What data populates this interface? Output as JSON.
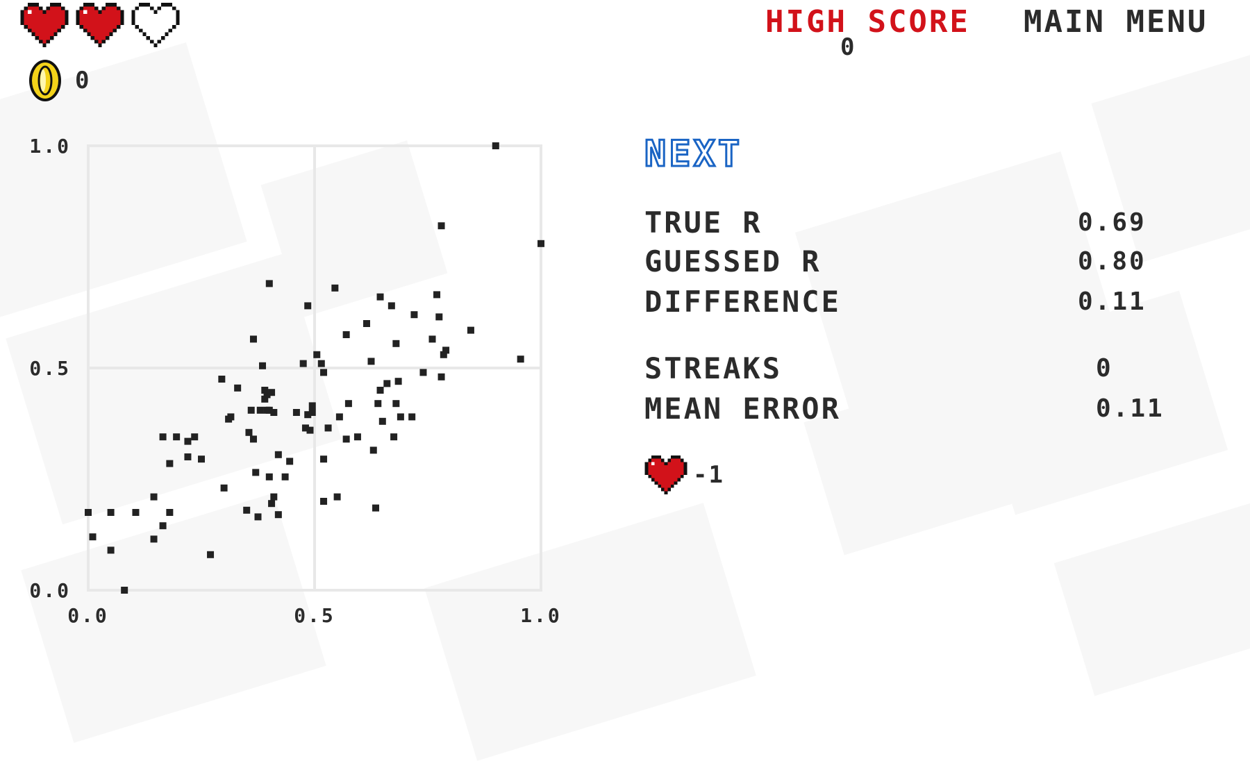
{
  "hud": {
    "lives": [
      {
        "state": "full",
        "icon": "heart-full-icon"
      },
      {
        "state": "full",
        "icon": "heart-full-icon"
      },
      {
        "state": "empty",
        "icon": "heart-empty-icon"
      }
    ],
    "coins": "0",
    "high_score_label": "HIGH SCORE",
    "high_score_value": "0",
    "main_menu_label": "MAIN MENU"
  },
  "stats": {
    "next_label": "NEXT",
    "true_r_label": "TRUE R",
    "true_r_value": "0.69",
    "guessed_r_label": "GUESSED R",
    "guessed_r_value": "0.80",
    "difference_label": "DIFFERENCE",
    "difference_value": "0.11",
    "streaks_label": "STREAKS",
    "streaks_value": "0",
    "mean_error_label": "MEAN ERROR",
    "mean_error_value": "0.11",
    "life_change": "-1"
  },
  "colors": {
    "accent_red": "#d2121a",
    "accent_blue": "#1a64c4",
    "text": "#2b2b2b",
    "grid": "#e8e8e8",
    "point": "#222222",
    "coin": "#f4d31a"
  },
  "chart_data": {
    "type": "scatter",
    "xlim": [
      0,
      1
    ],
    "ylim": [
      0,
      1
    ],
    "x_ticks": [
      "0.0",
      "0.5",
      "1.0"
    ],
    "y_ticks": [
      "0.0",
      "0.5",
      "1.0"
    ],
    "grid": true,
    "points": [
      [
        0.0,
        0.175
      ],
      [
        0.01,
        0.12
      ],
      [
        0.05,
        0.175
      ],
      [
        0.05,
        0.09
      ],
      [
        0.08,
        0.0
      ],
      [
        0.105,
        0.175
      ],
      [
        0.145,
        0.21
      ],
      [
        0.145,
        0.115
      ],
      [
        0.165,
        0.145
      ],
      [
        0.165,
        0.345
      ],
      [
        0.18,
        0.175
      ],
      [
        0.18,
        0.285
      ],
      [
        0.195,
        0.345
      ],
      [
        0.22,
        0.335
      ],
      [
        0.22,
        0.3
      ],
      [
        0.235,
        0.345
      ],
      [
        0.25,
        0.295
      ],
      [
        0.27,
        0.08
      ],
      [
        0.295,
        0.475
      ],
      [
        0.3,
        0.23
      ],
      [
        0.31,
        0.385
      ],
      [
        0.315,
        0.39
      ],
      [
        0.33,
        0.455
      ],
      [
        0.35,
        0.18
      ],
      [
        0.355,
        0.355
      ],
      [
        0.36,
        0.405
      ],
      [
        0.365,
        0.34
      ],
      [
        0.365,
        0.565
      ],
      [
        0.37,
        0.265
      ],
      [
        0.375,
        0.165
      ],
      [
        0.38,
        0.405
      ],
      [
        0.385,
        0.505
      ],
      [
        0.39,
        0.45
      ],
      [
        0.39,
        0.43
      ],
      [
        0.395,
        0.44
      ],
      [
        0.395,
        0.405
      ],
      [
        0.4,
        0.405
      ],
      [
        0.4,
        0.255
      ],
      [
        0.4,
        0.69
      ],
      [
        0.405,
        0.445
      ],
      [
        0.405,
        0.195
      ],
      [
        0.41,
        0.4
      ],
      [
        0.41,
        0.21
      ],
      [
        0.42,
        0.305
      ],
      [
        0.42,
        0.17
      ],
      [
        0.435,
        0.255
      ],
      [
        0.445,
        0.29
      ],
      [
        0.46,
        0.4
      ],
      [
        0.475,
        0.51
      ],
      [
        0.48,
        0.365
      ],
      [
        0.485,
        0.395
      ],
      [
        0.485,
        0.64
      ],
      [
        0.49,
        0.36
      ],
      [
        0.495,
        0.4
      ],
      [
        0.495,
        0.415
      ],
      [
        0.505,
        0.53
      ],
      [
        0.515,
        0.51
      ],
      [
        0.52,
        0.49
      ],
      [
        0.52,
        0.295
      ],
      [
        0.52,
        0.2
      ],
      [
        0.53,
        0.365
      ],
      [
        0.545,
        0.68
      ],
      [
        0.55,
        0.21
      ],
      [
        0.555,
        0.39
      ],
      [
        0.57,
        0.34
      ],
      [
        0.57,
        0.575
      ],
      [
        0.575,
        0.42
      ],
      [
        0.595,
        0.345
      ],
      [
        0.615,
        0.6
      ],
      [
        0.625,
        0.515
      ],
      [
        0.63,
        0.315
      ],
      [
        0.635,
        0.185
      ],
      [
        0.64,
        0.42
      ],
      [
        0.645,
        0.66
      ],
      [
        0.645,
        0.45
      ],
      [
        0.65,
        0.38
      ],
      [
        0.66,
        0.465
      ],
      [
        0.67,
        0.64
      ],
      [
        0.675,
        0.345
      ],
      [
        0.68,
        0.555
      ],
      [
        0.68,
        0.42
      ],
      [
        0.685,
        0.47
      ],
      [
        0.69,
        0.39
      ],
      [
        0.715,
        0.39
      ],
      [
        0.72,
        0.62
      ],
      [
        0.74,
        0.49
      ],
      [
        0.76,
        0.565
      ],
      [
        0.77,
        0.665
      ],
      [
        0.775,
        0.615
      ],
      [
        0.78,
        0.82
      ],
      [
        0.78,
        0.48
      ],
      [
        0.785,
        0.53
      ],
      [
        0.79,
        0.54
      ],
      [
        0.845,
        0.585
      ],
      [
        0.9,
        1.0
      ],
      [
        0.955,
        0.52
      ],
      [
        1.0,
        0.78
      ]
    ]
  }
}
